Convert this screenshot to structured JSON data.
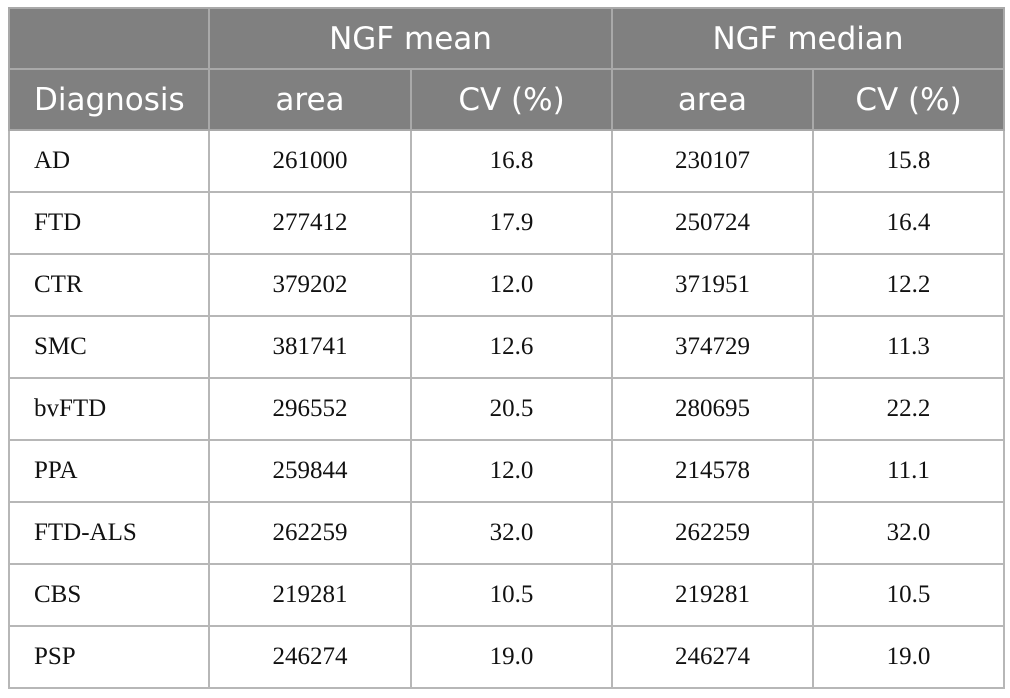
{
  "header": {
    "groups": [
      "NGF mean",
      "NGF median"
    ],
    "columns": [
      "Diagnosis",
      "area",
      "CV (%)",
      "area",
      "CV (%)"
    ]
  },
  "table": {
    "rows": [
      [
        "AD",
        "261000",
        "16.8",
        "230107",
        "15.8"
      ],
      [
        "FTD",
        "277412",
        "17.9",
        "250724",
        "16.4"
      ],
      [
        "CTR",
        "379202",
        "12.0",
        "371951",
        "12.2"
      ],
      [
        "SMC",
        "381741",
        "12.6",
        "374729",
        "11.3"
      ],
      [
        "bvFTD",
        "296552",
        "20.5",
        "280695",
        "22.2"
      ],
      [
        "PPA",
        "259844",
        "12.0",
        "214578",
        "11.1"
      ],
      [
        "FTD-ALS",
        "262259",
        "32.0",
        "262259",
        "32.0"
      ],
      [
        "CBS",
        "219281",
        "10.5",
        "219281",
        "10.5"
      ],
      [
        "PSP",
        "246274",
        "19.0",
        "246274",
        "19.0"
      ]
    ]
  }
}
